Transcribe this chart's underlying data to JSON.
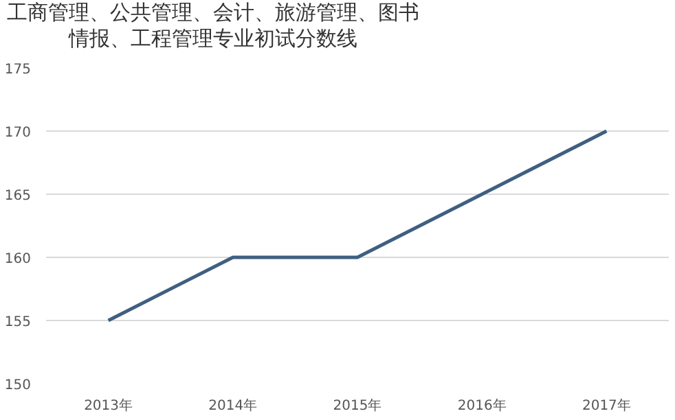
{
  "chart_data": {
    "type": "line",
    "title": "工商管理、公共管理、会计、旅游管理、图书情报、工程管理专业初试分数线",
    "categories": [
      "2013年",
      "2014年",
      "2015年",
      "2016年",
      "2017年"
    ],
    "series": [
      {
        "color": "#3f5f82",
        "values": [
          155,
          160,
          160,
          165,
          170
        ]
      }
    ],
    "ylim": [
      150,
      175
    ],
    "yticks": [
      150,
      155,
      160,
      165,
      170,
      175
    ],
    "grid": "y",
    "marker": "none",
    "line_style": "solid"
  }
}
